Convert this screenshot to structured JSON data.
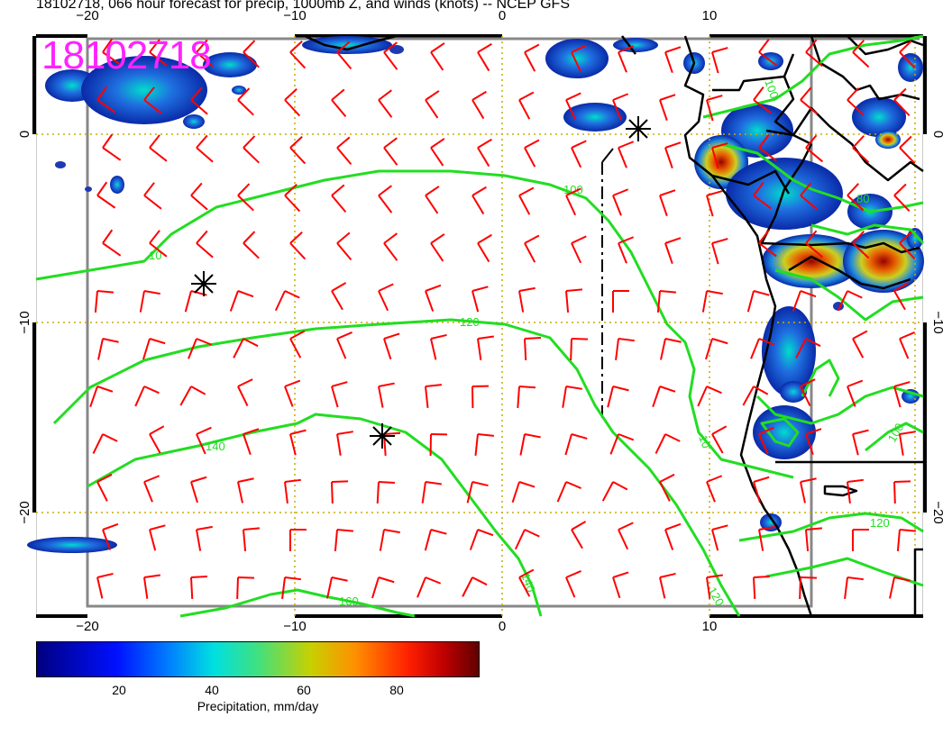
{
  "title": "18102718, 066 hour forecast for precip, 1000mb Z, and winds (knots) -- NCEP GFS",
  "stamp": "18102718",
  "map": {
    "lon_range": [
      -22.5,
      20.5
    ],
    "lat_range": [
      -25.5,
      5
    ],
    "lon_ticks": [
      "−20",
      "−10",
      "0",
      "10"
    ],
    "lat_ticks": [
      "0",
      "−10",
      "−20"
    ],
    "contour_labels": [
      "100",
      "10",
      "120",
      "140",
      "160",
      "140",
      "120",
      "10",
      "100",
      "80",
      "100",
      "120"
    ],
    "colors": {
      "barbs": "#ff0000",
      "contours": "#22dd22",
      "grid": "#ccaa00",
      "coast": "#000000"
    }
  },
  "colorbar": {
    "ticks": [
      "20",
      "40",
      "60",
      "80"
    ],
    "label": "Precipitation, mm/day",
    "range": [
      0,
      100
    ]
  }
}
